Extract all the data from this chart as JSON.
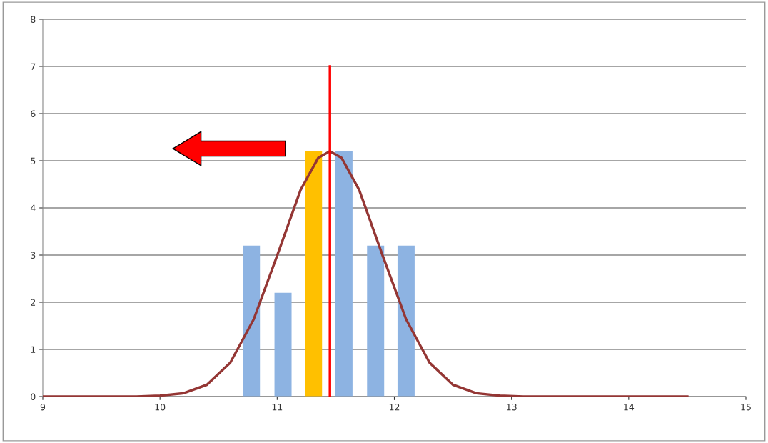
{
  "chart_data": {
    "type": "bar",
    "x": [
      10.78,
      11.05,
      11.31,
      11.57,
      11.84,
      12.1
    ],
    "series": [
      {
        "type": "bar",
        "colors": [
          "#8db3e2",
          "#8db3e2",
          "#ffc000",
          "#8db3e2",
          "#8db3e2",
          "#8db3e2"
        ],
        "values": [
          3.2,
          2.2,
          5.2,
          5.2,
          3.2,
          3.2
        ]
      },
      {
        "type": "line",
        "color": "#943634",
        "x": [
          9.0,
          9.5,
          9.8,
          10.0,
          10.2,
          10.4,
          10.6,
          10.8,
          11.0,
          11.2,
          11.35,
          11.45,
          11.55,
          11.7,
          11.9,
          12.1,
          12.3,
          12.5,
          12.7,
          12.9,
          13.1,
          13.5,
          14.0,
          14.5
        ],
        "values": [
          0,
          0,
          0.0,
          0.02,
          0.07,
          0.25,
          0.72,
          1.64,
          2.99,
          4.38,
          5.06,
          5.2,
          5.06,
          4.38,
          2.99,
          1.64,
          0.72,
          0.25,
          0.07,
          0.02,
          0.0,
          0,
          0,
          0
        ]
      },
      {
        "type": "line",
        "color": "#ff0000",
        "x": [
          11.45,
          11.45
        ],
        "values": [
          0,
          7
        ]
      }
    ],
    "xlim": [
      9,
      15
    ],
    "xticks": [
      9,
      10,
      11,
      12,
      13,
      14,
      15
    ],
    "ylim": [
      0,
      8
    ],
    "yticks": [
      0,
      1,
      2,
      3,
      4,
      5,
      6,
      7,
      8
    ],
    "grid": "y",
    "marker": "none",
    "line_style": "solid"
  }
}
